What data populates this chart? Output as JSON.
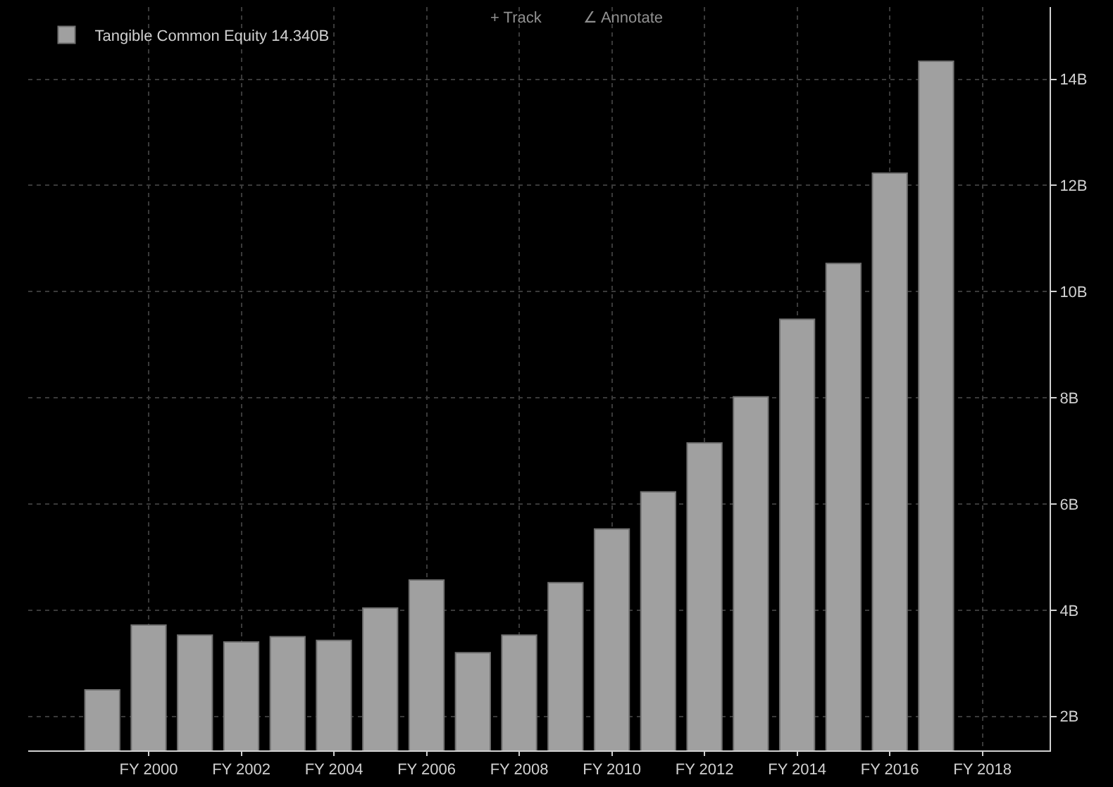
{
  "chart_data": {
    "type": "bar",
    "categories": [
      null,
      null,
      "FY 2000",
      null,
      "FY 2002",
      null,
      "FY 2004",
      null,
      "FY 2006",
      null,
      "FY 2008",
      null,
      "FY 2010",
      null,
      "FY 2012",
      null,
      "FY 2014",
      null,
      "FY 2016",
      null,
      "FY 2018",
      null
    ],
    "series": [
      {
        "name": "Tangible Common Equity 14.340B",
        "color": "#a0a0a0",
        "values": [
          null,
          2.5,
          3.72,
          3.53,
          3.4,
          3.5,
          3.43,
          4.04,
          4.57,
          3.2,
          3.53,
          4.52,
          5.53,
          6.23,
          7.15,
          8.02,
          9.48,
          10.53,
          12.23,
          14.34,
          null,
          null
        ]
      }
    ],
    "ylim": [
      1.36,
      15.36
    ],
    "yticks": [
      {
        "value": 2,
        "label": "2B"
      },
      {
        "value": 4,
        "label": "4B"
      },
      {
        "value": 6,
        "label": "6B"
      },
      {
        "value": 8,
        "label": "8B"
      },
      {
        "value": 10,
        "label": "10B"
      },
      {
        "value": 12,
        "label": "12B"
      },
      {
        "value": 14,
        "label": "14B"
      }
    ],
    "annotations": [
      "+ Track",
      "∠ Annotate"
    ],
    "grid": true,
    "legend": "top left"
  }
}
